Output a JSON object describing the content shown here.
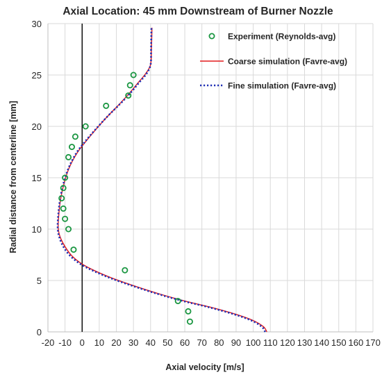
{
  "chart_data": {
    "type": "line",
    "title": "Axial Location: 45 mm Downstream of Burner Nozzle",
    "xlabel": "Axial velocity [m/s]",
    "ylabel": "Radial distance from centerline [mm]",
    "xlim": [
      -20,
      170
    ],
    "ylim": [
      0,
      30
    ],
    "xticks": [
      -20,
      -10,
      0,
      10,
      20,
      30,
      40,
      50,
      60,
      70,
      80,
      90,
      100,
      110,
      120,
      130,
      140,
      150,
      160,
      170
    ],
    "yticks": [
      0,
      5,
      10,
      15,
      20,
      25,
      30
    ],
    "grid": true,
    "legend_position": "top-right",
    "vertical_reference_line_x": 0,
    "series": [
      {
        "name": "Experiment (Reynolds-avg)",
        "style": "markers",
        "color": "#1a9641",
        "points": [
          [
            63,
            1
          ],
          [
            62,
            2
          ],
          [
            56,
            3
          ],
          [
            25,
            6
          ],
          [
            -5,
            8
          ],
          [
            -8,
            10
          ],
          [
            -10,
            11
          ],
          [
            -11,
            12
          ],
          [
            -12,
            13
          ],
          [
            -11,
            14
          ],
          [
            -10,
            15
          ],
          [
            -8,
            17
          ],
          [
            -6,
            18
          ],
          [
            -4,
            19
          ],
          [
            2,
            20
          ],
          [
            14,
            22
          ],
          [
            27,
            23
          ],
          [
            28,
            24
          ],
          [
            30,
            25
          ]
        ]
      },
      {
        "name": "Coarse simulation (Favre-avg)",
        "style": "solid",
        "color": "#e31a1c",
        "points": [
          [
            108,
            0
          ],
          [
            106,
            0.5
          ],
          [
            100,
            1.1
          ],
          [
            90,
            1.7
          ],
          [
            75,
            2.4
          ],
          [
            60,
            3.0
          ],
          [
            45,
            3.7
          ],
          [
            30,
            4.5
          ],
          [
            18,
            5.2
          ],
          [
            8,
            5.9
          ],
          [
            0,
            6.6
          ],
          [
            -6,
            7.4
          ],
          [
            -10,
            8.3
          ],
          [
            -13,
            9.3
          ],
          [
            -14,
            10.2
          ],
          [
            -13.6,
            11.5
          ],
          [
            -12.5,
            13.0
          ],
          [
            -10.5,
            14.5
          ],
          [
            -7.5,
            16.0
          ],
          [
            -3,
            17.4
          ],
          [
            2,
            18.5
          ],
          [
            8,
            19.7
          ],
          [
            15,
            21.0
          ],
          [
            22,
            22.2
          ],
          [
            28,
            23.3
          ],
          [
            33,
            24.3
          ],
          [
            37,
            25.1
          ],
          [
            40,
            26.0
          ],
          [
            40.5,
            27.5
          ],
          [
            40.8,
            29.6
          ]
        ]
      },
      {
        "name": "Fine simulation (Favre-avg)",
        "style": "dotted",
        "color": "#1f2fb4",
        "points": [
          [
            107,
            0
          ],
          [
            105,
            0.5
          ],
          [
            99,
            1.1
          ],
          [
            89,
            1.7
          ],
          [
            74,
            2.4
          ],
          [
            59,
            3.0
          ],
          [
            44,
            3.7
          ],
          [
            29,
            4.5
          ],
          [
            17,
            5.2
          ],
          [
            7,
            5.9
          ],
          [
            -1,
            6.6
          ],
          [
            -7,
            7.4
          ],
          [
            -11,
            8.3
          ],
          [
            -13.5,
            9.3
          ],
          [
            -14.3,
            10.2
          ],
          [
            -13.9,
            11.5
          ],
          [
            -12.8,
            13.0
          ],
          [
            -10.8,
            14.5
          ],
          [
            -7.8,
            16.0
          ],
          [
            -3.4,
            17.4
          ],
          [
            1.6,
            18.5
          ],
          [
            7.8,
            19.7
          ],
          [
            15,
            21.0
          ],
          [
            22.3,
            22.2
          ],
          [
            28.5,
            23.3
          ],
          [
            33.5,
            24.3
          ],
          [
            37.5,
            25.1
          ],
          [
            40,
            26.0
          ],
          [
            40.3,
            27.5
          ],
          [
            40.5,
            29.6
          ]
        ]
      }
    ]
  }
}
